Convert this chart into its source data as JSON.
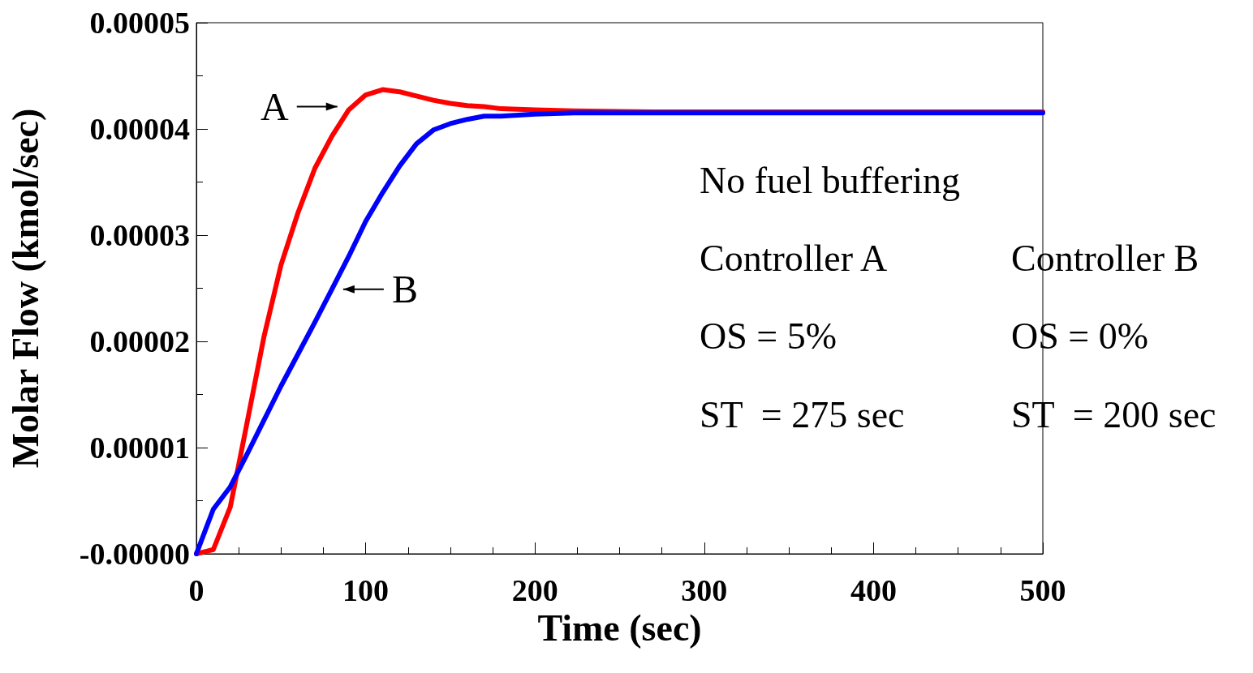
{
  "chart_data": {
    "type": "line",
    "xlabel": "Time (sec)",
    "ylabel": "Molar Flow (kmol/sec)",
    "xlim": [
      0,
      500
    ],
    "xticks": [
      0,
      100,
      200,
      300,
      400,
      500
    ],
    "ylim": [
      0,
      5e-05
    ],
    "yticks": [
      {
        "value": 0,
        "label": "-0.00000"
      },
      {
        "value": 1e-05,
        "label": "0.00001"
      },
      {
        "value": 2e-05,
        "label": "0.00002"
      },
      {
        "value": 3e-05,
        "label": "0.00003"
      },
      {
        "value": 4e-05,
        "label": "0.00004"
      },
      {
        "value": 5e-05,
        "label": "0.00005"
      }
    ],
    "grid": false,
    "legend": false,
    "marker": "none",
    "line_style": "solid",
    "series": [
      {
        "name": "A",
        "color": "#ff0000",
        "x": [
          0,
          10,
          20,
          30,
          40,
          50,
          60,
          70,
          80,
          90,
          100,
          110,
          120,
          130,
          140,
          150,
          160,
          170,
          180,
          200,
          223,
          270,
          500
        ],
        "values": [
          0,
          4e-07,
          4.4e-06,
          1.24e-05,
          2.05e-05,
          2.72e-05,
          3.21e-05,
          3.63e-05,
          3.93e-05,
          4.18e-05,
          4.32e-05,
          4.37e-05,
          4.35e-05,
          4.31e-05,
          4.27e-05,
          4.24e-05,
          4.22e-05,
          4.21e-05,
          4.19e-05,
          4.18e-05,
          4.17e-05,
          4.16e-05,
          4.16e-05
        ]
      },
      {
        "name": "B",
        "color": "#0000ff",
        "x": [
          0,
          10,
          20,
          30,
          40,
          50,
          60,
          70,
          80,
          90,
          100,
          110,
          120,
          130,
          140,
          150,
          160,
          170,
          180,
          200,
          223,
          500
        ],
        "values": [
          0,
          4.2e-06,
          6.3e-06,
          9.4e-06,
          1.26e-05,
          1.58e-05,
          1.88e-05,
          2.18e-05,
          2.49e-05,
          2.8e-05,
          3.13e-05,
          3.4e-05,
          3.65e-05,
          3.86e-05,
          3.99e-05,
          4.05e-05,
          4.09e-05,
          4.12e-05,
          4.12e-05,
          4.14e-05,
          4.15e-05,
          4.15e-05
        ]
      }
    ],
    "annotations": [
      "No fuel buffering",
      "Controller A",
      "OS = 5%",
      "ST  = 275 sec",
      "Controller B",
      "OS = 0%",
      "ST  = 200 sec"
    ]
  }
}
